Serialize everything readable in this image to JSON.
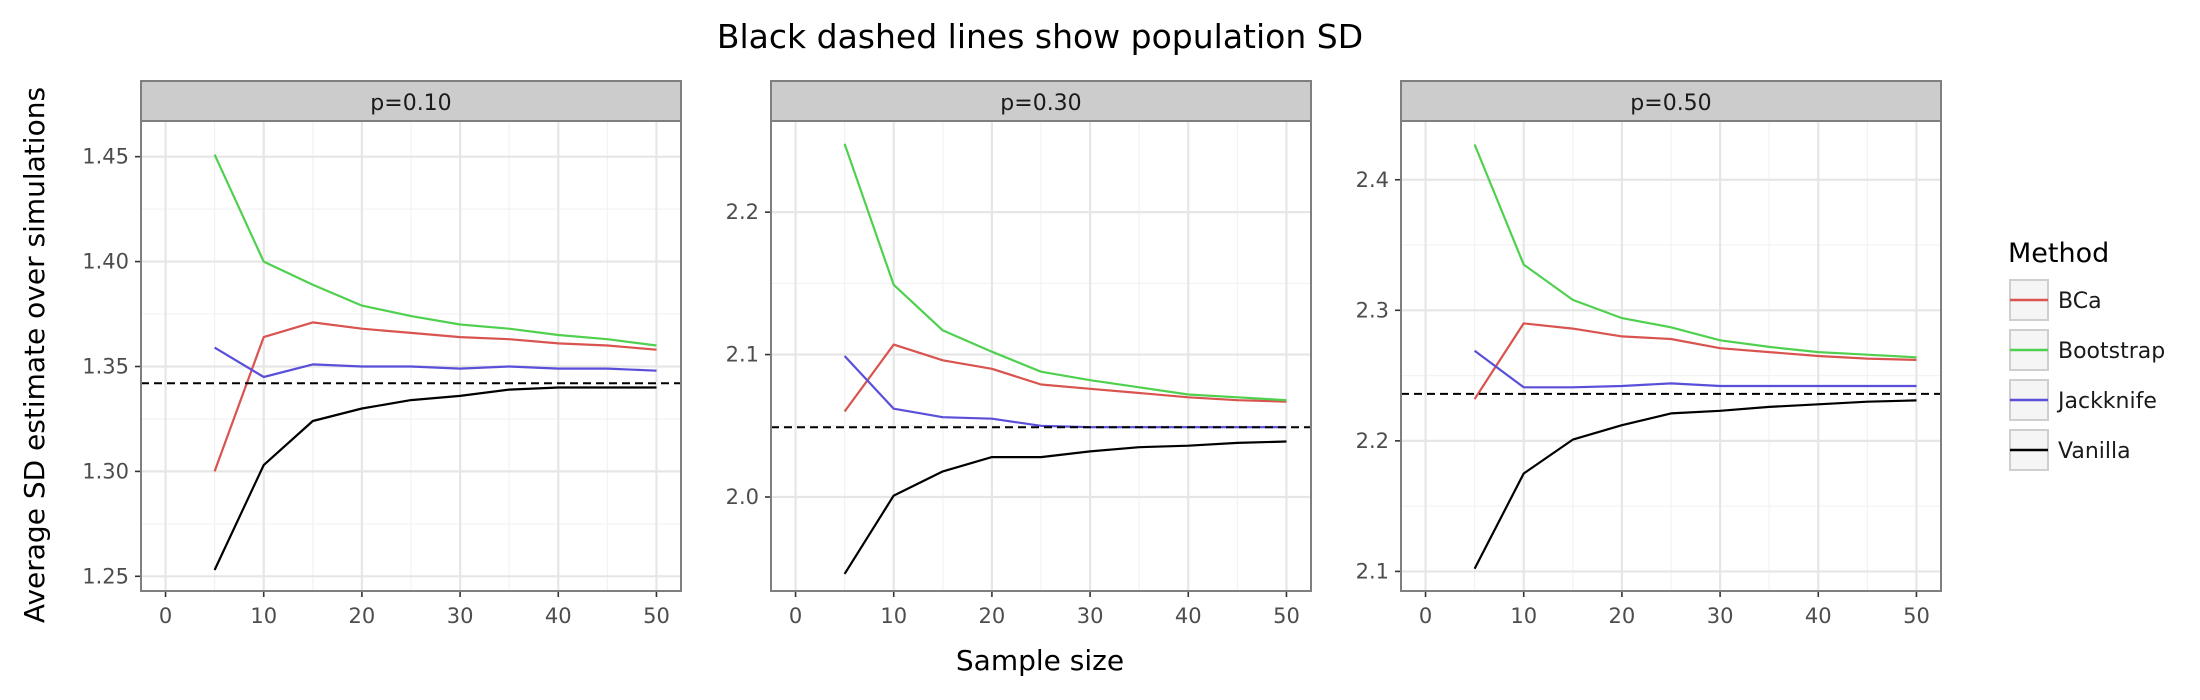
{
  "title": "Black dashed lines show population SD",
  "xlabel": "Sample size",
  "ylabel": "Average SD estimate over simulations",
  "legend": {
    "title": "Method",
    "entries": [
      "BCa",
      "Bootstrap",
      "Jackknife",
      "Vanilla"
    ]
  },
  "colors": {
    "BCa": "#d9534f",
    "Bootstrap": "#4fd04f",
    "Jackknife": "#5a4fd9",
    "Vanilla": "#000000",
    "strip_bg": "#cccccc",
    "panel_border": "#7f7f7f",
    "grid_major": "#e6e6e6",
    "grid_minor": "#f3f3f3"
  },
  "chart_data": [
    {
      "type": "line",
      "strip": "p=0.10",
      "x": [
        5,
        10,
        15,
        20,
        25,
        30,
        35,
        40,
        45,
        50
      ],
      "xticks": [
        0,
        10,
        20,
        30,
        40,
        50
      ],
      "xlim": [
        -2.5,
        52.5
      ],
      "yticks": [
        1.25,
        1.3,
        1.35,
        1.4,
        1.45
      ],
      "ytick_labels": [
        "1.25",
        "1.30",
        "1.35",
        "1.40",
        "1.45"
      ],
      "ylim": [
        1.243,
        1.467
      ],
      "population_sd": 1.342,
      "series": [
        {
          "name": "BCa",
          "values": [
            1.3,
            1.364,
            1.371,
            1.368,
            1.366,
            1.364,
            1.363,
            1.361,
            1.36,
            1.358
          ]
        },
        {
          "name": "Bootstrap",
          "values": [
            1.451,
            1.4,
            1.389,
            1.379,
            1.374,
            1.37,
            1.368,
            1.365,
            1.363,
            1.36
          ]
        },
        {
          "name": "Jackknife",
          "values": [
            1.359,
            1.345,
            1.351,
            1.35,
            1.35,
            1.349,
            1.35,
            1.349,
            1.349,
            1.348
          ]
        },
        {
          "name": "Vanilla",
          "values": [
            1.253,
            1.303,
            1.324,
            1.33,
            1.334,
            1.336,
            1.339,
            1.34,
            1.34,
            1.34
          ]
        }
      ]
    },
    {
      "type": "line",
      "strip": "p=0.30",
      "x": [
        5,
        10,
        15,
        20,
        25,
        30,
        35,
        40,
        45,
        50
      ],
      "xticks": [
        0,
        10,
        20,
        30,
        40,
        50
      ],
      "xlim": [
        -2.5,
        52.5
      ],
      "yticks": [
        2.0,
        2.1,
        2.2
      ],
      "ytick_labels": [
        "2.0",
        "2.1",
        "2.2"
      ],
      "ylim": [
        1.934,
        2.264
      ],
      "population_sd": 2.049,
      "series": [
        {
          "name": "BCa",
          "values": [
            2.06,
            2.107,
            2.096,
            2.09,
            2.079,
            2.076,
            2.073,
            2.07,
            2.068,
            2.067
          ]
        },
        {
          "name": "Bootstrap",
          "values": [
            2.248,
            2.149,
            2.117,
            2.102,
            2.088,
            2.082,
            2.077,
            2.072,
            2.07,
            2.068
          ]
        },
        {
          "name": "Jackknife",
          "values": [
            2.099,
            2.062,
            2.056,
            2.055,
            2.05,
            2.049,
            2.049,
            2.049,
            2.049,
            2.049
          ]
        },
        {
          "name": "Vanilla",
          "values": [
            1.946,
            2.001,
            2.018,
            2.028,
            2.028,
            2.032,
            2.035,
            2.036,
            2.038,
            2.039
          ]
        }
      ]
    },
    {
      "type": "line",
      "strip": "p=0.50",
      "x": [
        5,
        10,
        15,
        20,
        25,
        30,
        35,
        40,
        45,
        50
      ],
      "xticks": [
        0,
        10,
        20,
        30,
        40,
        50
      ],
      "xlim": [
        -2.5,
        52.5
      ],
      "yticks": [
        2.1,
        2.2,
        2.3,
        2.4
      ],
      "ytick_labels": [
        "2.1",
        "2.2",
        "2.3",
        "2.4"
      ],
      "ylim": [
        2.085,
        2.445
      ],
      "population_sd": 2.236,
      "series": [
        {
          "name": "BCa",
          "values": [
            2.232,
            2.29,
            2.286,
            2.28,
            2.278,
            2.271,
            2.268,
            2.265,
            2.263,
            2.262
          ]
        },
        {
          "name": "Bootstrap",
          "values": [
            2.427,
            2.335,
            2.308,
            2.294,
            2.287,
            2.277,
            2.272,
            2.268,
            2.266,
            2.264
          ]
        },
        {
          "name": "Jackknife",
          "values": [
            2.269,
            2.241,
            2.241,
            2.242,
            2.244,
            2.242,
            2.242,
            2.242,
            2.242,
            2.242
          ]
        },
        {
          "name": "Vanilla",
          "values": [
            2.102,
            2.175,
            2.201,
            2.212,
            2.221,
            2.223,
            2.226,
            2.228,
            2.23,
            2.231
          ]
        }
      ]
    }
  ]
}
